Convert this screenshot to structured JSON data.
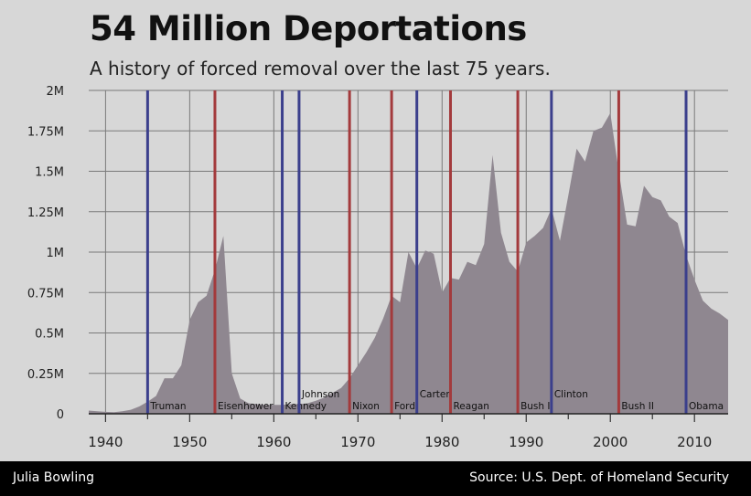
{
  "header": {
    "title": "54 Million Deportations",
    "subtitle": "A history of forced removal over the last 75 years."
  },
  "footer": {
    "author": "Julia Bowling",
    "source": "Source: U.S. Dept. of Homeland Security"
  },
  "colors": {
    "background": "#d7d7d7",
    "area": "#8f8790",
    "democrat": "#3b3f8c",
    "republican": "#a33a3c",
    "grid": "#7a7a7a",
    "footer": "#000000"
  },
  "chart_data": {
    "type": "area",
    "title": "54 Million Deportations",
    "subtitle": "A history of forced removal over the last 75 years.",
    "xlabel": "",
    "ylabel": "",
    "xlim": [
      1938,
      2014
    ],
    "ylim": [
      0,
      2000000
    ],
    "grid": true,
    "x_ticks": [
      1940,
      1950,
      1960,
      1970,
      1980,
      1990,
      2000,
      2010
    ],
    "y_ticks": [
      {
        "value": 0,
        "label": "0"
      },
      {
        "value": 250000,
        "label": "0.25M"
      },
      {
        "value": 500000,
        "label": "0.5M"
      },
      {
        "value": 750000,
        "label": "0.75M"
      },
      {
        "value": 1000000,
        "label": "1M"
      },
      {
        "value": 1250000,
        "label": "1.25M"
      },
      {
        "value": 1500000,
        "label": "1.5M"
      },
      {
        "value": 1750000,
        "label": "1.75M"
      },
      {
        "value": 2000000,
        "label": "2M"
      }
    ],
    "series": [
      {
        "x": [
          1938,
          1939,
          1940,
          1941,
          1942,
          1943,
          1944,
          1945,
          1946,
          1947,
          1948,
          1949,
          1950,
          1951,
          1952,
          1953,
          1954,
          1955,
          1956,
          1957,
          1958,
          1959,
          1960,
          1961,
          1962,
          1963,
          1964,
          1965,
          1966,
          1967,
          1968,
          1969,
          1970,
          1971,
          1972,
          1973,
          1974,
          1975,
          1976,
          1977,
          1978,
          1979,
          1980,
          1981,
          1982,
          1983,
          1984,
          1985,
          1986,
          1987,
          1988,
          1989,
          1990,
          1991,
          1992,
          1993,
          1994,
          1995,
          1996,
          1997,
          1998,
          1999,
          2000,
          2001,
          2002,
          2003,
          2004,
          2005,
          2006,
          2007,
          2008,
          2009,
          2010,
          2011,
          2012,
          2013,
          2014
        ],
        "values": [
          20000,
          15000,
          12000,
          10000,
          15000,
          25000,
          45000,
          75000,
          110000,
          220000,
          220000,
          300000,
          580000,
          690000,
          730000,
          890000,
          1100000,
          250000,
          95000,
          65000,
          60000,
          55000,
          55000,
          55000,
          60000,
          60000,
          65000,
          80000,
          100000,
          130000,
          160000,
          220000,
          300000,
          380000,
          470000,
          590000,
          730000,
          690000,
          1000000,
          900000,
          1010000,
          990000,
          750000,
          840000,
          830000,
          940000,
          920000,
          1050000,
          1600000,
          1120000,
          940000,
          880000,
          1060000,
          1100000,
          1150000,
          1270000,
          1070000,
          1350000,
          1640000,
          1560000,
          1750000,
          1770000,
          1860000,
          1500000,
          1170000,
          1160000,
          1410000,
          1340000,
          1320000,
          1220000,
          1180000,
          980000,
          830000,
          700000,
          650000,
          620000,
          580000
        ]
      }
    ],
    "presidents": [
      {
        "name": "Truman",
        "year": 1945,
        "party": "D",
        "label_row": 0
      },
      {
        "name": "Eisenhower",
        "year": 1953,
        "party": "R",
        "label_row": 0
      },
      {
        "name": "Kennedy",
        "year": 1961,
        "party": "D",
        "label_row": 0
      },
      {
        "name": "Johnson",
        "year": 1963,
        "party": "D",
        "label_row": 1
      },
      {
        "name": "Nixon",
        "year": 1969,
        "party": "R",
        "label_row": 0
      },
      {
        "name": "Ford",
        "year": 1974,
        "party": "R",
        "label_row": 0
      },
      {
        "name": "Carter",
        "year": 1977,
        "party": "D",
        "label_row": 1
      },
      {
        "name": "Reagan",
        "year": 1981,
        "party": "R",
        "label_row": 0
      },
      {
        "name": "Bush I",
        "year": 1989,
        "party": "R",
        "label_row": 0
      },
      {
        "name": "Clinton",
        "year": 1993,
        "party": "D",
        "label_row": 1
      },
      {
        "name": "Bush II",
        "year": 2001,
        "party": "R",
        "label_row": 0
      },
      {
        "name": "Obama",
        "year": 2009,
        "party": "D",
        "label_row": 0
      }
    ]
  }
}
